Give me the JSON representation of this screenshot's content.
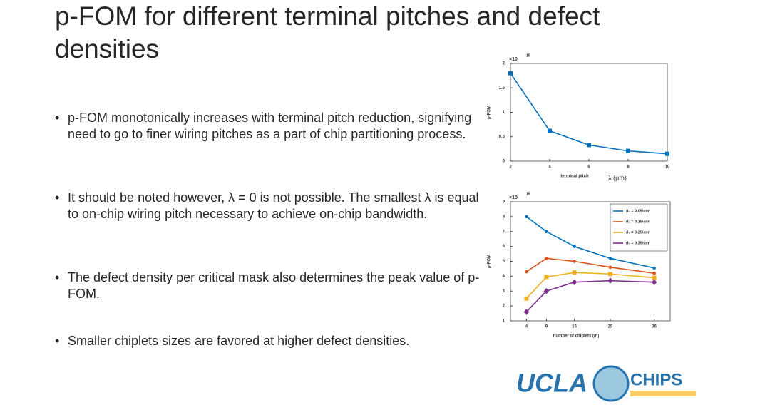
{
  "title": "p-FOM for different terminal pitches and defect densities",
  "bullets": [
    "p-FOM monotonically increases with terminal pitch reduction, signifying need to go to finer wiring pitches as a part of chip partitioning process.",
    "It should be noted however, λ = 0 is not possible. The smallest λ is equal to on-chip wiring pitch necessary to achieve on-chip bandwidth.",
    "The defect density per critical mask also determines the peak value of p-FOM.",
    "Smaller chiplets sizes are favored at higher defect densities."
  ],
  "logo": {
    "left": "UCLA",
    "right": "CHIPS"
  },
  "chart_data": [
    {
      "type": "line",
      "ylabel": "p-FOM",
      "xlabel": "terminal pitch",
      "xlabel_symbol": "λ (μm)",
      "multiplier": "×10",
      "multiplier_exponent": "15",
      "x": [
        2,
        4,
        6,
        8,
        10
      ],
      "xlim": [
        2,
        10
      ],
      "xticks": [
        2,
        4,
        6,
        8,
        10
      ],
      "ylim": [
        0,
        2
      ],
      "yticks": [
        0,
        0.5,
        1,
        1.5,
        2
      ],
      "series": [
        {
          "color": "#0072bd",
          "marker": "square",
          "values": [
            1.8,
            0.62,
            0.33,
            0.21,
            0.15
          ]
        }
      ]
    },
    {
      "type": "line",
      "ylabel": "p-FOM",
      "xlabel": "number of chiplets (m)",
      "multiplier": "×10",
      "multiplier_exponent": "15",
      "x": [
        4,
        9,
        16,
        25,
        36
      ],
      "xlim": [
        0,
        40
      ],
      "xticks": [
        4,
        9,
        16,
        25,
        36
      ],
      "ylim": [
        1,
        9
      ],
      "yticks": [
        1,
        2,
        3,
        4,
        5,
        6,
        7,
        8,
        9
      ],
      "series": [
        {
          "name": "d₀ = 0.05/cm²",
          "color": "#0072bd",
          "marker": "circle",
          "values": [
            8.0,
            7.0,
            6.0,
            5.2,
            4.55
          ]
        },
        {
          "name": "d₀ = 0.15/cm²",
          "color": "#d95319",
          "marker": "circle",
          "values": [
            4.3,
            5.2,
            5.0,
            4.6,
            4.2
          ]
        },
        {
          "name": "d₀ = 0.25/cm²",
          "color": "#edb120",
          "marker": "square",
          "values": [
            2.5,
            3.95,
            4.25,
            4.15,
            3.9
          ]
        },
        {
          "name": "d₀ = 0.35/cm²",
          "color": "#7e2f8e",
          "marker": "diamond",
          "values": [
            1.6,
            3.0,
            3.6,
            3.7,
            3.6
          ]
        }
      ]
    }
  ]
}
